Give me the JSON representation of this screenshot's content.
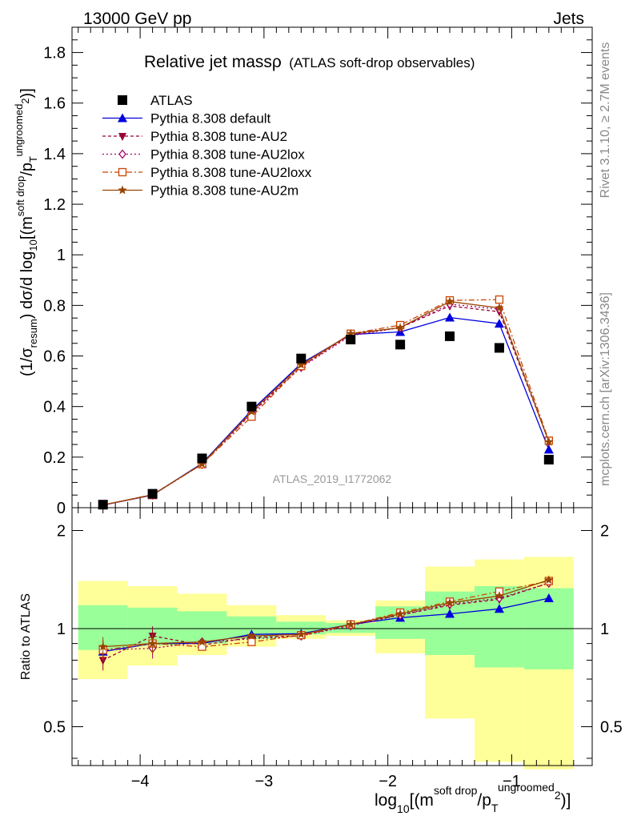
{
  "header": {
    "left": "13000 GeV pp",
    "right": "Jets"
  },
  "side_labels": {
    "rivet": "Rivet 3.1.10, ≥ 2.7M events",
    "site": "mcplots.cern.ch [arXiv:1306.3436]"
  },
  "watermark": "ATLAS_2019_I1772062",
  "title": {
    "main": "Relative jet massρ",
    "sub": "(ATLAS soft-drop observables)"
  },
  "axes": {
    "ylabel_main": {
      "pre": "(1/σ",
      "sub1": "resum",
      "mid": ") dσ/d log",
      "sub2": "10",
      "post": "[(m",
      "sup1": "soft drop",
      "slash": "/p",
      "sub3": "T",
      "sup2": "ungroomed",
      "sup3": "2",
      "end": ")]"
    },
    "ylabel_ratio": "Ratio to ATLAS",
    "xlabel": {
      "pre": "log",
      "sub1": "10",
      "mid": "[(m",
      "sup1": "soft drop",
      "slash": "/p",
      "sub2": "T",
      "sup2": "ungroomed",
      "sup3": "2",
      "end": ")]"
    }
  },
  "chart_data": {
    "type": "line",
    "x": [
      -4.3,
      -3.9,
      -3.5,
      -3.1,
      -2.7,
      -2.3,
      -1.9,
      -1.5,
      -1.1,
      -0.7
    ],
    "bin_edges": [
      -4.5,
      -4.1,
      -3.7,
      -3.3,
      -2.9,
      -2.5,
      -2.1,
      -1.7,
      -1.3,
      -0.9,
      -0.5
    ],
    "xlim": [
      -4.55,
      -0.35
    ],
    "xticks": [
      -4,
      -3,
      -2,
      -1
    ],
    "xtick_labels": [
      "−4",
      "−3",
      "−2",
      "−1"
    ],
    "main": {
      "ylim": [
        0,
        1.9
      ],
      "yticks": [
        0,
        0.2,
        0.4,
        0.6,
        0.8,
        1,
        1.2,
        1.4,
        1.6,
        1.8
      ],
      "ytick_labels": [
        "0",
        "0.2",
        "0.4",
        "0.6",
        "0.8",
        "1",
        "1.2",
        "1.4",
        "1.6",
        "1.8"
      ]
    },
    "ratio": {
      "ylim": [
        0.38,
        2.35
      ],
      "log": true,
      "yticks": [
        0.5,
        1,
        2
      ],
      "ytick_labels": [
        "0.5",
        "1",
        "2"
      ]
    },
    "data": {
      "name": "ATLAS",
      "values": [
        0.012,
        0.055,
        0.195,
        0.4,
        0.59,
        0.665,
        0.645,
        0.678,
        0.632,
        0.19
      ],
      "band_inner": [
        [
          0.86,
          1.18
        ],
        [
          0.89,
          1.16
        ],
        [
          0.9,
          1.13
        ],
        [
          0.93,
          1.09
        ],
        [
          0.96,
          1.05
        ],
        [
          0.97,
          1.04
        ],
        [
          0.93,
          1.17
        ],
        [
          0.83,
          1.3
        ],
        [
          0.76,
          1.35
        ],
        [
          0.75,
          1.33
        ]
      ],
      "band_outer": [
        [
          0.7,
          1.4
        ],
        [
          0.77,
          1.35
        ],
        [
          0.83,
          1.28
        ],
        [
          0.88,
          1.18
        ],
        [
          0.93,
          1.1
        ],
        [
          0.95,
          1.06
        ],
        [
          0.84,
          1.22
        ],
        [
          0.53,
          1.55
        ],
        [
          0.39,
          1.63
        ],
        [
          0.37,
          1.66
        ]
      ]
    },
    "series": [
      {
        "name": "Pythia 8.308 default",
        "color": "#0000dd",
        "dash": "",
        "marker": "triangle",
        "values": [
          0.01,
          0.05,
          0.175,
          0.385,
          0.57,
          0.685,
          0.695,
          0.752,
          0.728,
          0.23
        ],
        "ratio": [
          0.85,
          0.9,
          0.9,
          0.96,
          0.965,
          1.03,
          1.08,
          1.11,
          1.15,
          1.24
        ]
      },
      {
        "name": "Pythia 8.308 tune-AU2",
        "color": "#990033",
        "dash": "4,3",
        "marker": "triangle-down",
        "values": [
          0.01,
          0.052,
          0.172,
          0.375,
          0.558,
          0.685,
          0.712,
          0.798,
          0.775,
          0.262
        ],
        "ratio": [
          0.8,
          0.95,
          0.89,
          0.94,
          0.95,
          1.03,
          1.1,
          1.18,
          1.23,
          1.38
        ]
      },
      {
        "name": "Pythia 8.308 tune-AU2lox",
        "color": "#aa0066",
        "dash": "2,3",
        "marker": "diamond",
        "values": [
          0.01,
          0.05,
          0.172,
          0.372,
          0.555,
          0.68,
          0.712,
          0.805,
          0.785,
          0.262
        ],
        "ratio": [
          0.86,
          0.87,
          0.91,
          0.93,
          0.95,
          1.02,
          1.1,
          1.19,
          1.24,
          1.38
        ]
      },
      {
        "name": "Pythia 8.308 tune-AU2loxx",
        "color": "#cc4400",
        "dash": "7,3,2,3",
        "marker": "square-open",
        "values": [
          0.011,
          0.05,
          0.172,
          0.36,
          0.56,
          0.688,
          0.722,
          0.82,
          0.823,
          0.265
        ],
        "ratio": [
          0.86,
          0.9,
          0.88,
          0.91,
          0.955,
          1.03,
          1.12,
          1.21,
          1.3,
          1.4
        ]
      },
      {
        "name": "Pythia 8.308 tune-AU2m",
        "color": "#994400",
        "dash": "",
        "marker": "star",
        "values": [
          0.011,
          0.051,
          0.173,
          0.38,
          0.565,
          0.688,
          0.712,
          0.815,
          0.79,
          0.26
        ],
        "ratio": [
          0.88,
          0.9,
          0.91,
          0.95,
          0.96,
          1.03,
          1.11,
          1.2,
          1.26,
          1.41
        ]
      }
    ]
  }
}
